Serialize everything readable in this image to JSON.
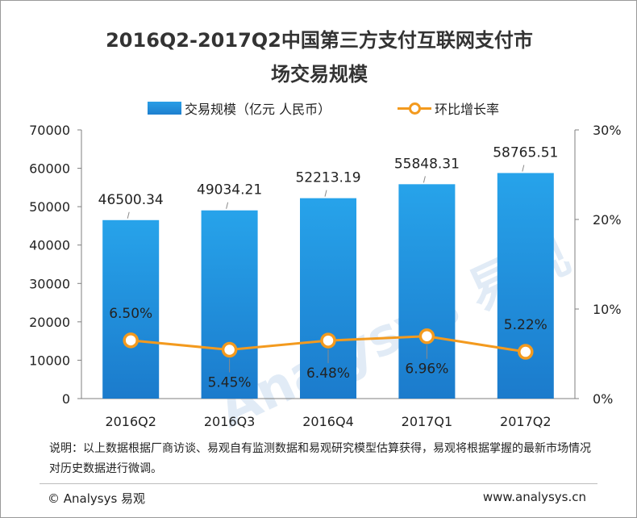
{
  "title_line1": "2016Q2-2017Q2中国第三方支付互联网支付市",
  "title_line2": "场交易规模",
  "legend": {
    "bar_label": "交易规模（亿元   人民币）",
    "line_label": "环比增长率"
  },
  "note": "说明：以上数据根据厂商访谈、易观自有监测数据和易观研究模型估算获得，易观将根据掌握的最新市场情况对历史数据进行微调。",
  "copyright": "© Analysys 易观",
  "site": "www.analysys.cn",
  "watermark": "Analysys 易观",
  "colors": {
    "bar": "#1e8ad9",
    "line": "#f39a1e"
  },
  "chart_data": {
    "type": "bar",
    "categories": [
      "2016Q2",
      "2016Q3",
      "2016Q4",
      "2017Q1",
      "2017Q2"
    ],
    "series": [
      {
        "name": "交易规模（亿元   人民币）",
        "type": "bar",
        "axis": "left",
        "values": [
          46500.34,
          49034.21,
          52213.19,
          55848.31,
          58765.51
        ],
        "labels": [
          "46500.34",
          "49034.21",
          "52213.19",
          "55848.31",
          "58765.51"
        ]
      },
      {
        "name": "环比增长率",
        "type": "line",
        "axis": "right",
        "values": [
          6.5,
          5.45,
          6.48,
          6.96,
          5.22
        ],
        "labels": [
          "6.50%",
          "5.45%",
          "6.48%",
          "6.96%",
          "5.22%"
        ]
      }
    ],
    "ylim_left": [
      0,
      70000
    ],
    "yticks_left": [
      "0",
      "10000",
      "20000",
      "30000",
      "40000",
      "50000",
      "60000",
      "70000"
    ],
    "ylim_right": [
      0,
      30
    ],
    "yticks_right": [
      "0%",
      "10%",
      "20%",
      "30%"
    ],
    "legend_position": "top",
    "grid": false
  }
}
